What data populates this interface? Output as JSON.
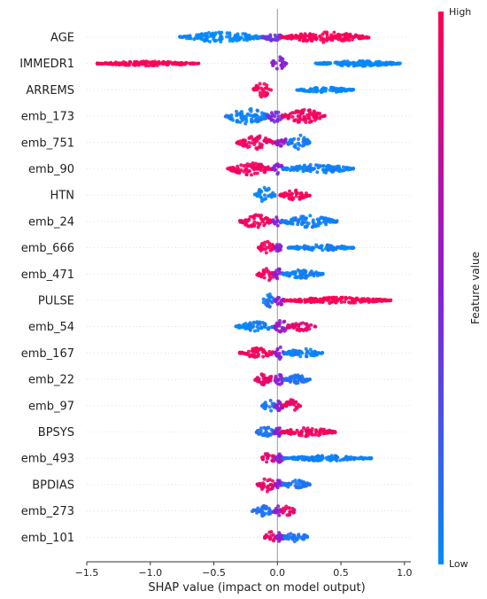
{
  "chart_data": {
    "type": "scatter",
    "subtype": "shap-beeswarm",
    "title": "",
    "xlabel": "SHAP value (impact on model output)",
    "ylabel": "",
    "xlim": [
      -1.5,
      1.05
    ],
    "xticks": [
      -1.5,
      -1.0,
      -0.5,
      0.0,
      0.5,
      1.0
    ],
    "xtick_labels": [
      "−1.5",
      "−1.0",
      "−0.5",
      "0.0",
      "0.5",
      "1.0"
    ],
    "grid": false,
    "colorbar": {
      "title": "Feature value",
      "high_label": "High",
      "low_label": "Low",
      "high_color": "#ff0052",
      "low_color": "#008bfb"
    },
    "features": [
      {
        "name": "AGE",
        "segments": [
          {
            "from": -0.77,
            "to": -0.1,
            "peak": 0.06,
            "value": 0.0
          },
          {
            "from": -0.12,
            "to": 0.05,
            "peak": 0.05,
            "value": 0.4
          },
          {
            "from": 0.03,
            "to": 0.72,
            "peak": 0.06,
            "value": 1.0
          }
        ]
      },
      {
        "name": "IMMEDR1",
        "segments": [
          {
            "from": -1.42,
            "to": -0.62,
            "peak": 0.025,
            "value": 1.0
          },
          {
            "from": -0.05,
            "to": 0.07,
            "peak": 0.08,
            "value": 0.5
          },
          {
            "from": 0.3,
            "to": 0.98,
            "peak": 0.03,
            "value": 0.0
          }
        ]
      },
      {
        "name": "ARREMS",
        "segments": [
          {
            "from": -0.19,
            "to": -0.05,
            "peak": 0.09,
            "value": 1.0
          },
          {
            "from": 0.15,
            "to": 0.6,
            "peak": 0.03,
            "value": 0.0
          }
        ]
      },
      {
        "name": "emb_173",
        "segments": [
          {
            "from": -0.42,
            "to": -0.05,
            "peak": 0.09,
            "value": 0.05
          },
          {
            "from": -0.08,
            "to": 0.05,
            "peak": 0.07,
            "value": 0.45
          },
          {
            "from": 0.03,
            "to": 0.38,
            "peak": 0.08,
            "value": 0.95
          }
        ]
      },
      {
        "name": "emb_751",
        "segments": [
          {
            "from": -0.32,
            "to": -0.02,
            "peak": 0.08,
            "value": 0.95
          },
          {
            "from": -0.02,
            "to": 0.1,
            "peak": 0.06,
            "value": 0.55
          },
          {
            "from": 0.08,
            "to": 0.26,
            "peak": 0.09,
            "value": 0.05
          }
        ]
      },
      {
        "name": "emb_90",
        "segments": [
          {
            "from": -0.4,
            "to": -0.03,
            "peak": 0.07,
            "value": 0.95
          },
          {
            "from": -0.04,
            "to": 0.05,
            "peak": 0.07,
            "value": 0.5
          },
          {
            "from": 0.04,
            "to": 0.6,
            "peak": 0.05,
            "value": 0.05
          }
        ]
      },
      {
        "name": "HTN",
        "segments": [
          {
            "from": -0.18,
            "to": -0.02,
            "peak": 0.1,
            "value": 0.0
          },
          {
            "from": 0.02,
            "to": 0.26,
            "peak": 0.06,
            "value": 1.0
          }
        ]
      },
      {
        "name": "emb_24",
        "segments": [
          {
            "from": -0.3,
            "to": -0.03,
            "peak": 0.08,
            "value": 0.95
          },
          {
            "from": -0.04,
            "to": 0.04,
            "peak": 0.07,
            "value": 0.5
          },
          {
            "from": 0.03,
            "to": 0.47,
            "peak": 0.07,
            "value": 0.05
          }
        ]
      },
      {
        "name": "emb_666",
        "segments": [
          {
            "from": -0.15,
            "to": -0.02,
            "peak": 0.08,
            "value": 0.95
          },
          {
            "from": -0.02,
            "to": 0.04,
            "peak": 0.06,
            "value": 0.5
          },
          {
            "from": 0.08,
            "to": 0.6,
            "peak": 0.035,
            "value": 0.05
          }
        ]
      },
      {
        "name": "emb_471",
        "segments": [
          {
            "from": -0.16,
            "to": -0.01,
            "peak": 0.08,
            "value": 0.95
          },
          {
            "from": -0.03,
            "to": 0.05,
            "peak": 0.06,
            "value": 0.5
          },
          {
            "from": 0.04,
            "to": 0.36,
            "peak": 0.05,
            "value": 0.05
          }
        ]
      },
      {
        "name": "PULSE",
        "segments": [
          {
            "from": -0.12,
            "to": -0.01,
            "peak": 0.08,
            "value": 0.1
          },
          {
            "from": -0.02,
            "to": 0.06,
            "peak": 0.06,
            "value": 0.55
          },
          {
            "from": 0.05,
            "to": 0.9,
            "peak": 0.035,
            "value": 1.0
          }
        ]
      },
      {
        "name": "emb_54",
        "segments": [
          {
            "from": -0.33,
            "to": -0.02,
            "peak": 0.06,
            "value": 0.05
          },
          {
            "from": -0.03,
            "to": 0.1,
            "peak": 0.08,
            "value": 0.55
          },
          {
            "from": 0.08,
            "to": 0.3,
            "peak": 0.05,
            "value": 0.9
          }
        ]
      },
      {
        "name": "emb_167",
        "segments": [
          {
            "from": -0.3,
            "to": -0.02,
            "peak": 0.06,
            "value": 0.95
          },
          {
            "from": -0.02,
            "to": 0.06,
            "peak": 0.07,
            "value": 0.5
          },
          {
            "from": 0.05,
            "to": 0.36,
            "peak": 0.05,
            "value": 0.05
          }
        ]
      },
      {
        "name": "emb_22",
        "segments": [
          {
            "from": -0.18,
            "to": -0.02,
            "peak": 0.07,
            "value": 0.9
          },
          {
            "from": -0.03,
            "to": 0.06,
            "peak": 0.06,
            "value": 0.5
          },
          {
            "from": 0.05,
            "to": 0.26,
            "peak": 0.05,
            "value": 0.1
          }
        ]
      },
      {
        "name": "emb_97",
        "segments": [
          {
            "from": -0.13,
            "to": -0.01,
            "peak": 0.07,
            "value": 0.1
          },
          {
            "from": -0.02,
            "to": 0.05,
            "peak": 0.06,
            "value": 0.5
          },
          {
            "from": 0.04,
            "to": 0.18,
            "peak": 0.07,
            "value": 0.95
          }
        ]
      },
      {
        "name": "BPSYS",
        "segments": [
          {
            "from": -0.17,
            "to": -0.02,
            "peak": 0.06,
            "value": 0.1
          },
          {
            "from": -0.03,
            "to": 0.04,
            "peak": 0.06,
            "value": 0.5
          },
          {
            "from": 0.03,
            "to": 0.46,
            "peak": 0.05,
            "value": 0.95
          }
        ]
      },
      {
        "name": "emb_493",
        "segments": [
          {
            "from": -0.12,
            "to": -0.01,
            "peak": 0.08,
            "value": 0.9
          },
          {
            "from": -0.02,
            "to": 0.05,
            "peak": 0.05,
            "value": 0.5
          },
          {
            "from": 0.04,
            "to": 0.74,
            "peak": 0.03,
            "value": 0.05
          }
        ]
      },
      {
        "name": "BPDIAS",
        "segments": [
          {
            "from": -0.16,
            "to": -0.01,
            "peak": 0.08,
            "value": 0.9
          },
          {
            "from": -0.02,
            "to": 0.05,
            "peak": 0.06,
            "value": 0.5
          },
          {
            "from": 0.04,
            "to": 0.26,
            "peak": 0.05,
            "value": 0.1
          }
        ]
      },
      {
        "name": "emb_273",
        "segments": [
          {
            "from": -0.2,
            "to": -0.02,
            "peak": 0.06,
            "value": 0.1
          },
          {
            "from": -0.03,
            "to": 0.04,
            "peak": 0.06,
            "value": 0.5
          },
          {
            "from": 0.03,
            "to": 0.14,
            "peak": 0.07,
            "value": 0.9
          }
        ]
      },
      {
        "name": "emb_101",
        "segments": [
          {
            "from": -0.1,
            "to": -0.01,
            "peak": 0.07,
            "value": 0.9
          },
          {
            "from": -0.01,
            "to": 0.05,
            "peak": 0.06,
            "value": 0.5
          },
          {
            "from": 0.04,
            "to": 0.25,
            "peak": 0.05,
            "value": 0.1
          }
        ]
      }
    ]
  }
}
